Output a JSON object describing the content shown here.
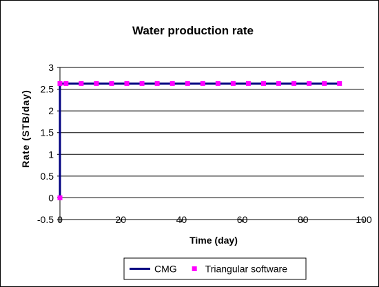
{
  "chart_data": {
    "type": "line",
    "title": "Water production rate",
    "xlabel": "Time (day)",
    "ylabel": "Rate (STB/day)",
    "xlim": [
      0,
      100
    ],
    "ylim": [
      -0.5,
      3
    ],
    "x_ticks": [
      "0",
      "20",
      "40",
      "60",
      "80",
      "100"
    ],
    "y_ticks": [
      "-0.5",
      "0",
      "0.5",
      "1",
      "1.5",
      "2",
      "2.5",
      "3"
    ],
    "grid": "horizontal",
    "legend": "bottom",
    "series": [
      {
        "name": "CMG",
        "style": "line",
        "color": "#000080",
        "x": [
          0,
          0,
          92
        ],
        "y": [
          0,
          2.63,
          2.63
        ]
      },
      {
        "name": "Triangular software",
        "style": "markers",
        "marker": "square",
        "color": "#ff00ff",
        "x": [
          0,
          0,
          2,
          7,
          12,
          17,
          22,
          27,
          32,
          37,
          42,
          47,
          52,
          57,
          62,
          67,
          72,
          77,
          82,
          87,
          92
        ],
        "y": [
          0,
          2.63,
          2.63,
          2.63,
          2.63,
          2.63,
          2.63,
          2.63,
          2.63,
          2.63,
          2.63,
          2.63,
          2.63,
          2.63,
          2.63,
          2.63,
          2.63,
          2.63,
          2.63,
          2.63,
          2.63
        ]
      }
    ]
  }
}
